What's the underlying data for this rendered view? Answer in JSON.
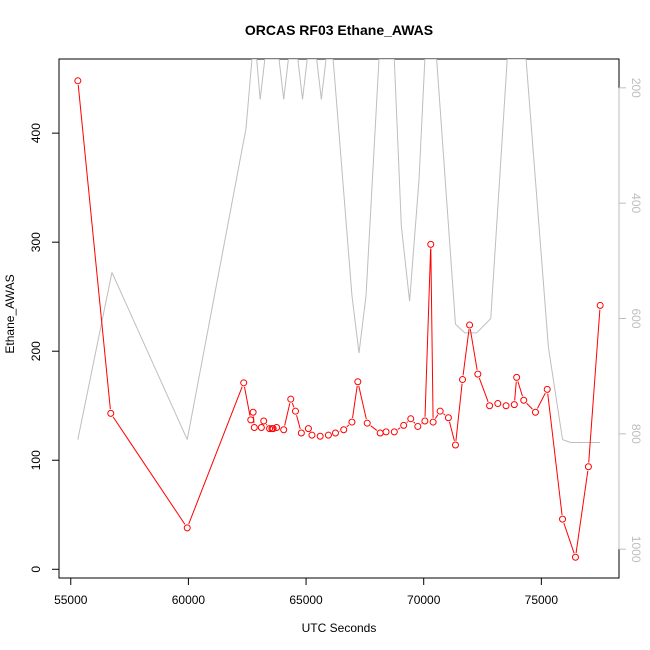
{
  "chart_data": {
    "type": "line",
    "title": "ORCAS RF03 Ethane_AWAS",
    "xlabel": "UTC Seconds",
    "ylabel": "Ethane_AWAS",
    "xlim": [
      54500,
      78300
    ],
    "ylim": [
      -8,
      468
    ],
    "x_ticks": [
      55000,
      60000,
      65000,
      70000,
      75000
    ],
    "x_tick_labels": [
      "55000",
      "60000",
      "65000",
      "70000",
      "75000"
    ],
    "y_ticks": [
      0,
      100,
      200,
      300,
      400
    ],
    "y_tick_labels": [
      "0",
      "100",
      "200",
      "300",
      "400"
    ],
    "y2_reversed": true,
    "y2lim": [
      1050,
      150
    ],
    "y2_ticks": [
      200,
      400,
      600,
      800,
      1000
    ],
    "y2_tick_labels": [
      "200",
      "400",
      "600",
      "800",
      "1000"
    ],
    "grid": false,
    "series": [
      {
        "color": "#ff0000",
        "marker": "open-circle",
        "axis": "left",
        "points": [
          [
            55300,
            448
          ],
          [
            56700,
            143
          ],
          [
            59950,
            38
          ],
          [
            62350,
            171
          ],
          [
            62650,
            137
          ],
          [
            62750,
            144
          ],
          [
            62800,
            130
          ],
          [
            63100,
            130
          ],
          [
            63200,
            136
          ],
          [
            63450,
            129
          ],
          [
            63550,
            129
          ],
          [
            63600,
            129
          ],
          [
            63750,
            130
          ],
          [
            64050,
            128
          ],
          [
            64350,
            156
          ],
          [
            64550,
            145
          ],
          [
            64800,
            125
          ],
          [
            65100,
            129
          ],
          [
            65250,
            123
          ],
          [
            65600,
            122
          ],
          [
            65950,
            123
          ],
          [
            66250,
            125
          ],
          [
            66600,
            128
          ],
          [
            66950,
            135
          ],
          [
            67200,
            172
          ],
          [
            67600,
            134
          ],
          [
            68150,
            125
          ],
          [
            68400,
            126
          ],
          [
            68750,
            126
          ],
          [
            69150,
            132
          ],
          [
            69450,
            138
          ],
          [
            69750,
            131
          ],
          [
            70050,
            136
          ],
          [
            70300,
            298
          ],
          [
            70400,
            135
          ],
          [
            70700,
            145
          ],
          [
            71050,
            139
          ],
          [
            71350,
            114
          ],
          [
            71650,
            174
          ],
          [
            71950,
            224
          ],
          [
            72300,
            179
          ],
          [
            72800,
            150
          ],
          [
            73150,
            152
          ],
          [
            73500,
            150
          ],
          [
            73850,
            151
          ],
          [
            73950,
            176
          ],
          [
            74250,
            155
          ],
          [
            74750,
            144
          ],
          [
            75250,
            165
          ],
          [
            75900,
            46
          ],
          [
            76450,
            11
          ],
          [
            77000,
            94
          ],
          [
            77500,
            242
          ]
        ]
      },
      {
        "color": "#bebebe",
        "marker": "none",
        "axis": "right",
        "points": [
          [
            55300,
            810
          ],
          [
            56750,
            520
          ],
          [
            59950,
            810
          ],
          [
            62450,
            270
          ],
          [
            62700,
            150
          ],
          [
            62900,
            150
          ],
          [
            63050,
            220
          ],
          [
            63250,
            150
          ],
          [
            63850,
            150
          ],
          [
            64050,
            220
          ],
          [
            64250,
            150
          ],
          [
            64650,
            150
          ],
          [
            64850,
            220
          ],
          [
            65050,
            150
          ],
          [
            65450,
            150
          ],
          [
            65650,
            220
          ],
          [
            65850,
            150
          ],
          [
            66150,
            150
          ],
          [
            66950,
            560
          ],
          [
            67250,
            660
          ],
          [
            67550,
            560
          ],
          [
            68100,
            150
          ],
          [
            68750,
            150
          ],
          [
            69050,
            440
          ],
          [
            69400,
            570
          ],
          [
            69800,
            360
          ],
          [
            70050,
            150
          ],
          [
            70550,
            150
          ],
          [
            71350,
            610
          ],
          [
            71750,
            625
          ],
          [
            72250,
            625
          ],
          [
            72850,
            600
          ],
          [
            73550,
            150
          ],
          [
            74350,
            150
          ],
          [
            75300,
            650
          ],
          [
            75900,
            810
          ],
          [
            76250,
            815
          ],
          [
            77000,
            815
          ],
          [
            77500,
            815
          ]
        ]
      }
    ]
  }
}
